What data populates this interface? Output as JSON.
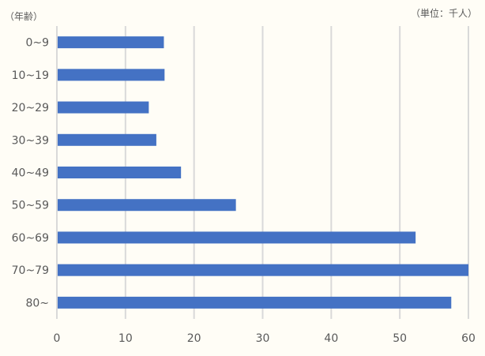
{
  "chart_data": {
    "type": "bar",
    "orientation": "horizontal",
    "categories": [
      "0~9",
      "10~19",
      "20~29",
      "30~39",
      "40~49",
      "50~59",
      "60~69",
      "70~79",
      "80~"
    ],
    "values": [
      15.6,
      15.7,
      13.4,
      14.5,
      18.1,
      26.1,
      52.3,
      60.1,
      57.5
    ],
    "ylabel": "（年齢）",
    "unit_label": "（単位：千人）",
    "xlim": [
      0,
      60
    ],
    "xticks": [
      0,
      10,
      20,
      30,
      40,
      50,
      60
    ],
    "grid": "vertical",
    "legend": "none",
    "bar_color": "#4472c4",
    "grid_color": "#d9d9d9",
    "text_color": "#595959"
  }
}
